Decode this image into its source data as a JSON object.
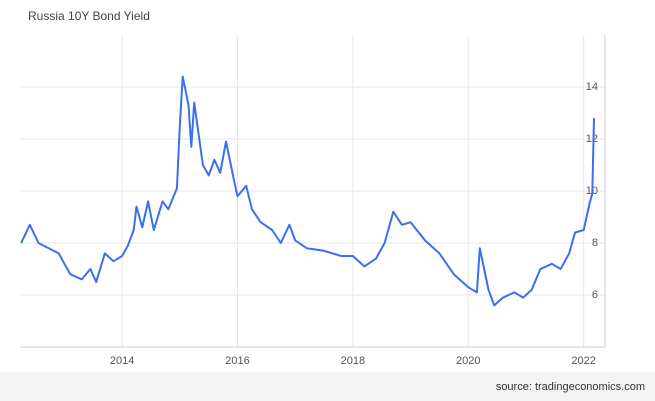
{
  "chart_data": {
    "type": "line",
    "title": "Russia 10Y Bond Yield",
    "source": "source: tradingeconomics.com",
    "x": [
      2012.25,
      2012.4,
      2012.55,
      2012.9,
      2013.1,
      2013.3,
      2013.45,
      2013.55,
      2013.7,
      2013.85,
      2014.0,
      2014.1,
      2014.2,
      2014.25,
      2014.35,
      2014.45,
      2014.55,
      2014.7,
      2014.8,
      2014.95,
      2015.0,
      2015.05,
      2015.15,
      2015.2,
      2015.25,
      2015.4,
      2015.5,
      2015.6,
      2015.7,
      2015.8,
      2015.95,
      2016.0,
      2016.15,
      2016.25,
      2016.4,
      2016.6,
      2016.75,
      2016.9,
      2017.0,
      2017.2,
      2017.5,
      2017.8,
      2018.0,
      2018.2,
      2018.4,
      2018.55,
      2018.7,
      2018.85,
      2019.0,
      2019.25,
      2019.5,
      2019.75,
      2020.0,
      2020.15,
      2020.2,
      2020.35,
      2020.45,
      2020.6,
      2020.8,
      2020.95,
      2021.1,
      2021.25,
      2021.45,
      2021.6,
      2021.75,
      2021.85,
      2022.0,
      2022.1,
      2022.15,
      2022.18
    ],
    "series": [
      {
        "name": "Russia 10Y Bond Yield",
        "color": "#3b6ef0",
        "values": [
          8.0,
          8.7,
          8.0,
          7.6,
          6.8,
          6.6,
          7.0,
          6.5,
          7.6,
          7.3,
          7.5,
          7.9,
          8.5,
          9.4,
          8.6,
          9.6,
          8.5,
          9.6,
          9.3,
          10.1,
          12.5,
          14.4,
          13.3,
          11.7,
          13.4,
          11.0,
          10.6,
          11.2,
          10.7,
          11.9,
          10.3,
          9.8,
          10.2,
          9.3,
          8.8,
          8.5,
          8.0,
          8.7,
          8.1,
          7.8,
          7.7,
          7.5,
          7.5,
          7.1,
          7.4,
          8.0,
          9.2,
          8.7,
          8.8,
          8.1,
          7.6,
          6.8,
          6.3,
          6.1,
          7.8,
          6.2,
          5.6,
          5.9,
          6.1,
          5.9,
          6.2,
          7.0,
          7.2,
          7.0,
          7.6,
          8.4,
          8.5,
          9.5,
          9.9,
          12.8
        ]
      }
    ],
    "xlim": [
      2012.23,
      2022.37
    ],
    "xticks": [
      2014,
      2016,
      2018,
      2020,
      2022
    ],
    "ylim": [
      4,
      16
    ],
    "yticks": [
      6,
      8,
      10,
      12,
      14
    ],
    "grid": true
  }
}
